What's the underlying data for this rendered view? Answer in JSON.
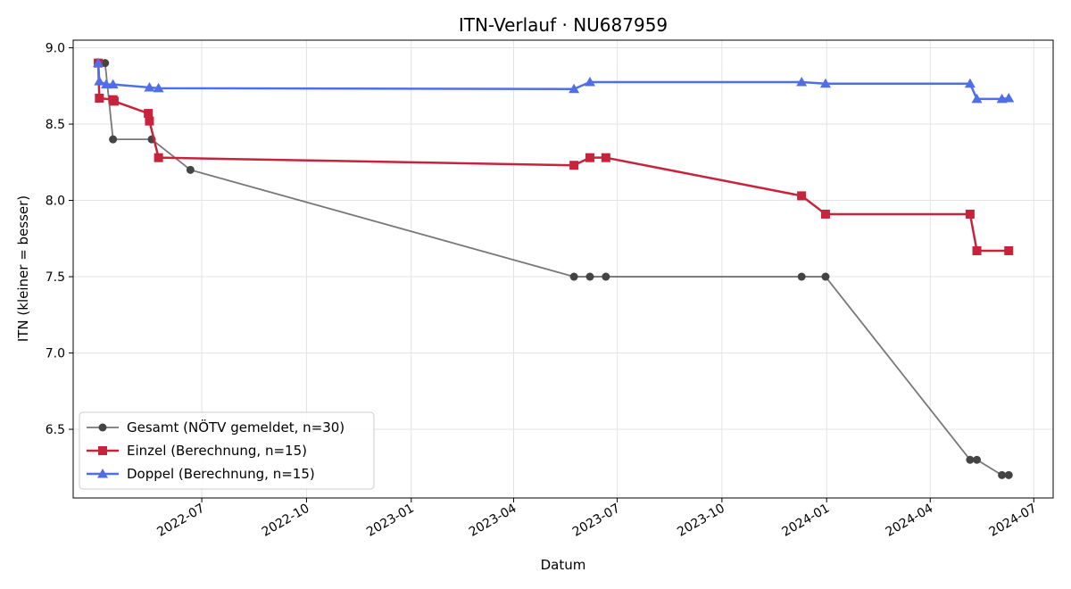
{
  "chart_data": {
    "type": "line",
    "title": "ITN-Verlauf · NU687959",
    "xlabel": "Datum",
    "ylabel": "ITN  (kleiner = besser)",
    "x_axis": "date",
    "xlim": [
      "2022-03-10",
      "2024-07-18"
    ],
    "ylim": [
      6.05,
      9.05
    ],
    "x_ticks": [
      "2022-07",
      "2022-10",
      "2023-01",
      "2023-04",
      "2023-07",
      "2023-10",
      "2024-01",
      "2024-04",
      "2024-07"
    ],
    "y_ticks": [
      6.5,
      7.0,
      7.5,
      8.0,
      8.5,
      9.0
    ],
    "grid": true,
    "legend_position": "lower-left",
    "series": [
      {
        "name": "Gesamt (NÖTV gemeldet, n=30)",
        "color": "#444444",
        "marker": "circle",
        "points": [
          {
            "x": "2022-04-01",
            "y": 8.9
          },
          {
            "x": "2022-04-07",
            "y": 8.9
          },
          {
            "x": "2022-04-14",
            "y": 8.4
          },
          {
            "x": "2022-05-18",
            "y": 8.4
          },
          {
            "x": "2022-06-21",
            "y": 8.2
          },
          {
            "x": "2023-05-24",
            "y": 7.5
          },
          {
            "x": "2023-06-07",
            "y": 7.5
          },
          {
            "x": "2023-06-21",
            "y": 7.5
          },
          {
            "x": "2023-12-10",
            "y": 7.5
          },
          {
            "x": "2023-12-31",
            "y": 7.5
          },
          {
            "x": "2024-05-06",
            "y": 6.3
          },
          {
            "x": "2024-05-12",
            "y": 6.3
          },
          {
            "x": "2024-06-03",
            "y": 6.2
          },
          {
            "x": "2024-06-09",
            "y": 6.2
          }
        ]
      },
      {
        "name": "Einzel (Berechnung, n=15)",
        "color": "#c8233c",
        "marker": "square",
        "points": [
          {
            "x": "2022-04-01",
            "y": 8.9
          },
          {
            "x": "2022-04-02",
            "y": 8.67
          },
          {
            "x": "2022-04-14",
            "y": 8.66
          },
          {
            "x": "2022-04-15",
            "y": 8.65
          },
          {
            "x": "2022-05-15",
            "y": 8.57
          },
          {
            "x": "2022-05-16",
            "y": 8.52
          },
          {
            "x": "2022-05-24",
            "y": 8.28
          },
          {
            "x": "2023-05-24",
            "y": 8.23
          },
          {
            "x": "2023-06-07",
            "y": 8.28
          },
          {
            "x": "2023-06-21",
            "y": 8.28
          },
          {
            "x": "2023-12-10",
            "y": 8.03
          },
          {
            "x": "2023-12-31",
            "y": 7.91
          },
          {
            "x": "2024-05-06",
            "y": 7.91
          },
          {
            "x": "2024-05-12",
            "y": 7.67
          },
          {
            "x": "2024-06-09",
            "y": 7.67
          }
        ]
      },
      {
        "name": "Doppel (Berechnung, n=15)",
        "color": "#4f6fea",
        "marker": "triangle",
        "points": [
          {
            "x": "2022-04-01",
            "y": 8.9
          },
          {
            "x": "2022-04-02",
            "y": 8.78
          },
          {
            "x": "2022-04-08",
            "y": 8.76
          },
          {
            "x": "2022-04-14",
            "y": 8.76
          },
          {
            "x": "2022-05-16",
            "y": 8.74
          },
          {
            "x": "2022-05-24",
            "y": 8.735
          },
          {
            "x": "2023-05-24",
            "y": 8.73
          },
          {
            "x": "2023-06-07",
            "y": 8.775
          },
          {
            "x": "2023-12-10",
            "y": 8.775
          },
          {
            "x": "2023-12-31",
            "y": 8.765
          },
          {
            "x": "2024-05-06",
            "y": 8.765
          },
          {
            "x": "2024-05-12",
            "y": 8.665
          },
          {
            "x": "2024-06-03",
            "y": 8.665
          },
          {
            "x": "2024-06-09",
            "y": 8.67
          }
        ]
      }
    ]
  }
}
